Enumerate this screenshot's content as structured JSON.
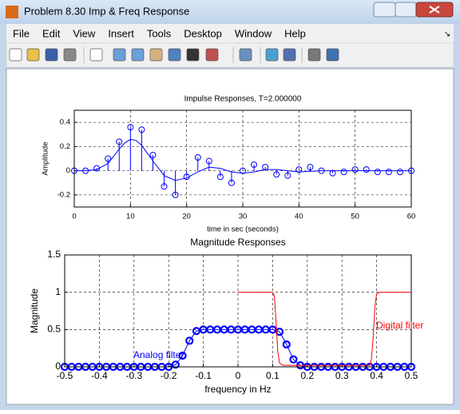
{
  "window": {
    "title": "Problem 8.30 Imp & Freq Response",
    "menu": [
      "File",
      "Edit",
      "View",
      "Insert",
      "Tools",
      "Desktop",
      "Window",
      "Help"
    ]
  },
  "chart_data": [
    {
      "type": "stem",
      "title": "Impulse Responses, T=2.000000",
      "x_label": "time in sec (seconds)",
      "y_label": "Amplitude",
      "xlim": [
        0,
        60
      ],
      "xticks": [
        0,
        10,
        20,
        30,
        40,
        50,
        60
      ],
      "ylim": [
        -0.3,
        0.5
      ],
      "yticks": [
        -0.2,
        0,
        0.2,
        0.4
      ],
      "grid": true,
      "series": [
        {
          "kind": "stem",
          "color": "#0000ff",
          "x": [
            0,
            2,
            4,
            6,
            8,
            10,
            12,
            14,
            16,
            18,
            20,
            22,
            24,
            26,
            28,
            30,
            32,
            34,
            36,
            38,
            40,
            42,
            44,
            46,
            48,
            50,
            52,
            54,
            56,
            58,
            60
          ],
          "values": [
            0,
            0,
            0.02,
            0.1,
            0.24,
            0.36,
            0.34,
            0.13,
            -0.13,
            -0.2,
            -0.05,
            0.11,
            0.08,
            -0.05,
            -0.1,
            0,
            0.05,
            0.03,
            -0.03,
            -0.04,
            0.01,
            0.03,
            0,
            -0.02,
            -0.01,
            0.01,
            0.01,
            -0.01,
            -0.01,
            -0.01,
            0
          ]
        },
        {
          "kind": "line",
          "color": "#0000ff",
          "x": [
            0,
            2,
            4,
            6,
            8,
            9,
            10,
            11,
            12,
            14,
            16,
            18,
            20,
            22,
            24,
            26,
            28,
            30,
            32,
            34,
            36,
            38,
            40,
            44,
            48,
            52,
            56,
            60
          ],
          "values": [
            0,
            0,
            0.01,
            0.06,
            0.18,
            0.23,
            0.26,
            0.25,
            0.21,
            0.08,
            -0.04,
            -0.08,
            -0.06,
            -0.01,
            0.03,
            0.02,
            -0.01,
            -0.02,
            -0.01,
            0.01,
            0.01,
            0,
            -0.01,
            0,
            0,
            0,
            0,
            0
          ]
        }
      ]
    },
    {
      "type": "line",
      "title": "Magnitude Responses",
      "x_label": "frequency in Hz",
      "y_label": "Magnitude",
      "xlim": [
        -0.5,
        0.5
      ],
      "xticks": [
        -0.5,
        -0.4,
        -0.3,
        -0.2,
        -0.1,
        0,
        0.1,
        0.2,
        0.3,
        0.4,
        0.5
      ],
      "ylim": [
        0,
        1.5
      ],
      "yticks": [
        0,
        0.5,
        1,
        1.5
      ],
      "grid": true,
      "series": [
        {
          "kind": "line",
          "marker": "circle",
          "color": "#0000ff",
          "x": [
            -0.5,
            -0.48,
            -0.46,
            -0.44,
            -0.42,
            -0.4,
            -0.38,
            -0.36,
            -0.34,
            -0.32,
            -0.3,
            -0.28,
            -0.26,
            -0.24,
            -0.22,
            -0.2,
            -0.18,
            -0.16,
            -0.14,
            -0.12,
            -0.1,
            -0.08,
            -0.06,
            -0.04,
            -0.02,
            0,
            0.02,
            0.04,
            0.06,
            0.08,
            0.1,
            0.12,
            0.14,
            0.16,
            0.18,
            0.2,
            0.22,
            0.24,
            0.26,
            0.28,
            0.3,
            0.32,
            0.34,
            0.36,
            0.38,
            0.4,
            0.42,
            0.44,
            0.46,
            0.48,
            0.5
          ],
          "values": [
            0,
            0,
            0,
            0,
            0,
            0,
            0,
            0,
            0,
            0,
            0,
            0,
            0,
            0,
            0,
            0,
            0.03,
            0.15,
            0.35,
            0.48,
            0.5,
            0.5,
            0.5,
            0.5,
            0.5,
            0.5,
            0.5,
            0.5,
            0.5,
            0.5,
            0.5,
            0.47,
            0.3,
            0.1,
            0.02,
            0,
            0,
            0,
            0,
            0,
            0,
            0,
            0,
            0,
            0,
            0,
            0,
            0,
            0,
            0,
            0
          ]
        },
        {
          "kind": "line",
          "color": "#ff0000",
          "x": [
            0,
            0.1,
            0.105,
            0.11,
            0.115,
            0.12,
            0.13,
            0.38,
            0.385,
            0.39,
            0.395,
            0.4,
            0.41,
            0.5
          ],
          "values": [
            1,
            1,
            0.95,
            0.6,
            0.2,
            0.05,
            0.02,
            0.02,
            0.1,
            0.4,
            0.8,
            0.98,
            1,
            1
          ]
        }
      ],
      "annotations": [
        {
          "text": "Analog filter",
          "color": "#0000ff"
        },
        {
          "text": "Digital filter",
          "color": "#ff0000"
        }
      ]
    }
  ]
}
